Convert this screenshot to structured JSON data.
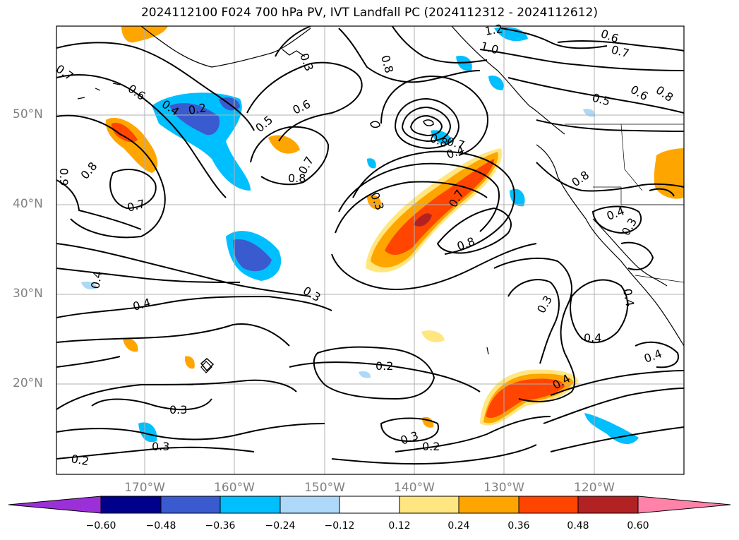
{
  "title": "2024112100 F024 700 hPa PV, IVT Landfall PC (2024112312 - 2024112612)",
  "lat_labels": [
    "50°N",
    "40°N",
    "30°N",
    "20°N"
  ],
  "lon_labels": [
    "170°W",
    "160°W",
    "150°W",
    "140°W",
    "130°W",
    "120°W"
  ],
  "contour_labels": [
    "0.7",
    "0.6",
    "0.4",
    "0.2",
    "0.3",
    "0.8",
    "0.5",
    "0.6",
    "0.8",
    "0.7",
    "0.3",
    "0.8",
    "0.7",
    "0.8",
    "0.4",
    "0.6",
    "0.7",
    "0.5",
    "0.8",
    "1.0",
    "1.2",
    "0.6",
    "0.7",
    "0.8",
    "0.9",
    "0.7",
    "0.8",
    "0.4",
    "0.3",
    "0.4",
    "0.4",
    "0.3",
    "0.4",
    "0.3",
    "0.4",
    "0.4",
    "0.2",
    "0.4",
    "0.3",
    "0.2",
    "0.3",
    "0.2",
    "0.3",
    "0.4",
    "0.4"
  ],
  "colorbar": {
    "ticks": [
      "−0.60",
      "−0.48",
      "−0.36",
      "−0.24",
      "−0.12",
      "0.12",
      "0.24",
      "0.36",
      "0.48",
      "0.60"
    ],
    "colors": [
      "#9b30d9",
      "#00008b",
      "#3a5bd0",
      "#00bfff",
      "#add8f7",
      "#ffffff",
      "#ffe680",
      "#ffa500",
      "#ff4500",
      "#b22222",
      "#ff82a9"
    ]
  }
}
